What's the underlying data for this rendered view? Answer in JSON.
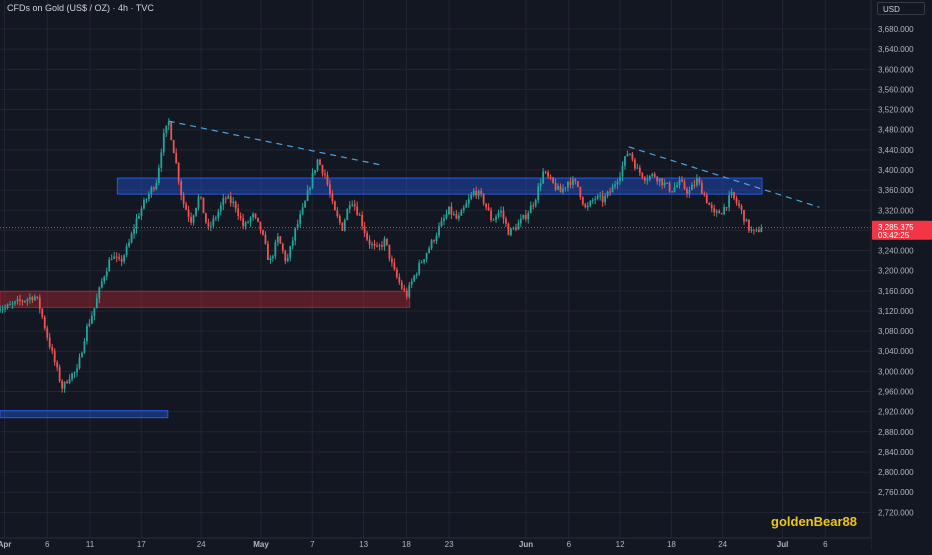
{
  "header": {
    "title": "CFDs on Gold (US$ / OZ) · 4h · TVC",
    "currency": "USD"
  },
  "watermark": "goldenBear88",
  "price_tag": {
    "price": "3,285.375",
    "countdown": "03:42:25"
  },
  "colors": {
    "bull": "#26a69a",
    "bear": "#ef5350",
    "supply": "#2962ff",
    "demand": "#b22833",
    "trend": "#4aa3df",
    "price_line": "#ef5350"
  },
  "chart_data": {
    "type": "candlestick",
    "ylim": [
      2700,
      3720
    ],
    "yticks": [
      3680,
      3640,
      3600,
      3560,
      3520,
      3480,
      3440,
      3400,
      3360,
      3320,
      3280,
      3240,
      3200,
      3160,
      3120,
      3080,
      3040,
      3000,
      2960,
      2920,
      2880,
      2840,
      2800,
      2760,
      2720
    ],
    "ytick_labels": [
      "3,680.000",
      "3,640.000",
      "3,600.000",
      "3,560.000",
      "3,520.000",
      "3,480.000",
      "3,440.000",
      "3,400.000",
      "3,360.000",
      "3,320.000",
      "3,280.000",
      "3,240.000",
      "3,200.000",
      "3,160.000",
      "3,120.000",
      "3,080.000",
      "3,040.000",
      "3,000.000",
      "2,960.000",
      "2,920.000",
      "2,880.000",
      "2,840.000",
      "2,800.000",
      "2,760.000",
      "2,720.000"
    ],
    "xticks": [
      {
        "label": "Apr",
        "day": 0,
        "bold": true
      },
      {
        "label": "6",
        "day": 5
      },
      {
        "label": "11",
        "day": 10
      },
      {
        "label": "17",
        "day": 16
      },
      {
        "label": "24",
        "day": 23
      },
      {
        "label": "May",
        "day": 30,
        "bold": true
      },
      {
        "label": "7",
        "day": 36
      },
      {
        "label": "13",
        "day": 42
      },
      {
        "label": "18",
        "day": 47
      },
      {
        "label": "23",
        "day": 52
      },
      {
        "label": "Jun",
        "day": 61,
        "bold": true
      },
      {
        "label": "6",
        "day": 66
      },
      {
        "label": "12",
        "day": 72
      },
      {
        "label": "18",
        "day": 78
      },
      {
        "label": "24",
        "day": 84
      },
      {
        "label": "Jul",
        "day": 91,
        "bold": true
      },
      {
        "label": "6",
        "day": 96
      }
    ],
    "x_start_day": -0.8,
    "x_end_day": 101.5,
    "path": [
      [
        -0.8,
        3130
      ],
      [
        0,
        3125
      ],
      [
        2,
        3140
      ],
      [
        3.5,
        3150
      ],
      [
        4,
        3135
      ],
      [
        5,
        3070
      ],
      [
        6,
        3010
      ],
      [
        6.8,
        2965
      ],
      [
        7.5,
        2990
      ],
      [
        8.5,
        3000
      ],
      [
        9.5,
        3080
      ],
      [
        10.5,
        3125
      ],
      [
        11.5,
        3185
      ],
      [
        12.5,
        3230
      ],
      [
        13.5,
        3215
      ],
      [
        14.5,
        3250
      ],
      [
        15.5,
        3305
      ],
      [
        16.5,
        3340
      ],
      [
        17.8,
        3380
      ],
      [
        18.5,
        3460
      ],
      [
        19.2,
        3495
      ],
      [
        20,
        3420
      ],
      [
        20.8,
        3340
      ],
      [
        21.8,
        3300
      ],
      [
        22.8,
        3350
      ],
      [
        23.8,
        3280
      ],
      [
        24.8,
        3310
      ],
      [
        25.8,
        3345
      ],
      [
        27,
        3330
      ],
      [
        28,
        3285
      ],
      [
        29,
        3310
      ],
      [
        30,
        3280
      ],
      [
        31,
        3215
      ],
      [
        32,
        3265
      ],
      [
        33,
        3215
      ],
      [
        34,
        3280
      ],
      [
        35,
        3325
      ],
      [
        35.8,
        3375
      ],
      [
        36.6,
        3420
      ],
      [
        37.5,
        3390
      ],
      [
        38.5,
        3320
      ],
      [
        39.5,
        3285
      ],
      [
        40.5,
        3345
      ],
      [
        41.5,
        3310
      ],
      [
        42.5,
        3260
      ],
      [
        43.5,
        3240
      ],
      [
        44.5,
        3260
      ],
      [
        45.5,
        3200
      ],
      [
        46.5,
        3165
      ],
      [
        47,
        3150
      ],
      [
        47.8,
        3185
      ],
      [
        48.8,
        3220
      ],
      [
        49.8,
        3250
      ],
      [
        51,
        3290
      ],
      [
        52,
        3320
      ],
      [
        53,
        3300
      ],
      [
        54,
        3330
      ],
      [
        55,
        3360
      ],
      [
        56,
        3340
      ],
      [
        57,
        3300
      ],
      [
        58,
        3320
      ],
      [
        59,
        3275
      ],
      [
        60,
        3290
      ],
      [
        61,
        3310
      ],
      [
        62,
        3340
      ],
      [
        63,
        3395
      ],
      [
        64,
        3375
      ],
      [
        65,
        3355
      ],
      [
        66,
        3380
      ],
      [
        67,
        3370
      ],
      [
        68,
        3320
      ],
      [
        69,
        3345
      ],
      [
        70,
        3340
      ],
      [
        71,
        3360
      ],
      [
        72,
        3395
      ],
      [
        73,
        3440
      ],
      [
        74,
        3400
      ],
      [
        75,
        3385
      ],
      [
        76,
        3390
      ],
      [
        77,
        3375
      ],
      [
        78,
        3360
      ],
      [
        79,
        3375
      ],
      [
        80,
        3355
      ],
      [
        81,
        3380
      ],
      [
        82,
        3345
      ],
      [
        83,
        3310
      ],
      [
        84,
        3320
      ],
      [
        85,
        3350
      ],
      [
        86,
        3325
      ],
      [
        87,
        3285
      ],
      [
        87.8,
        3272
      ],
      [
        88.6,
        3290
      ]
    ],
    "zones": [
      {
        "kind": "supply",
        "day_from": 13.2,
        "day_to": 88.6,
        "price_low": 3352,
        "price_high": 3384
      },
      {
        "kind": "demand",
        "day_from": -0.8,
        "day_to": 47.4,
        "price_low": 3127,
        "price_high": 3159
      },
      {
        "kind": "supply",
        "day_from": -0.8,
        "day_to": 19.1,
        "price_low": 2908,
        "price_high": 2922
      }
    ],
    "trendlines": [
      {
        "from_day": 19.2,
        "from_price": 3497,
        "to_day": 44.3,
        "to_price": 3409
      },
      {
        "from_day": 73,
        "from_price": 3446,
        "to_day": 95.3,
        "to_price": 3326
      }
    ],
    "last_price": 3285.375
  }
}
